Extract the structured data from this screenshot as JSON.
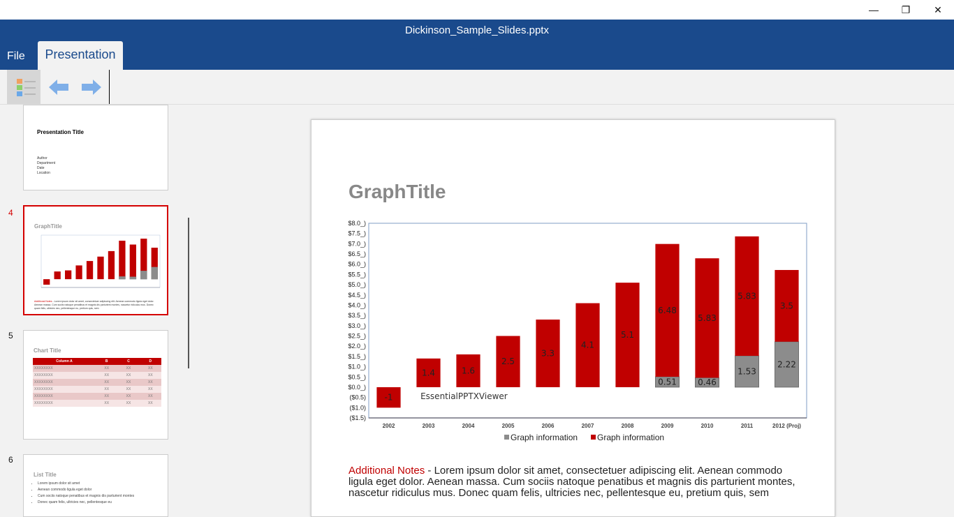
{
  "window": {
    "title": "Dickinson_Sample_Slides.pptx",
    "minimize": "—",
    "restore": "❐",
    "close": "✕"
  },
  "menu": {
    "file": "File",
    "presentation": "Presentation"
  },
  "toolbar": {
    "icons": [
      "slide-list-icon",
      "arrow-left-icon",
      "arrow-right-icon"
    ]
  },
  "thumbnails": [
    {
      "number": "",
      "title": "Presentation Title",
      "lines": [
        "Author",
        "Department",
        "Date",
        "Location"
      ]
    },
    {
      "number": "4",
      "title": "GraphTitle",
      "selected": true
    },
    {
      "number": "5",
      "title": "Chart Title",
      "headers": [
        "Column A",
        "B",
        "C",
        "D"
      ],
      "rows": [
        [
          "XXXXXXXX",
          "XX",
          "XX",
          "XX"
        ],
        [
          "XXXXXXXX",
          "XX",
          "XX",
          "XX"
        ],
        [
          "XXXXXXXX",
          "XX",
          "XX",
          "XX"
        ],
        [
          "XXXXXXXX",
          "XX",
          "XX",
          "XX"
        ],
        [
          "XXXXXXXX",
          "XX",
          "XX",
          "XX"
        ],
        [
          "XXXXXXXX",
          "XX",
          "XX",
          "XX"
        ]
      ]
    },
    {
      "number": "6",
      "title": "List Title",
      "bullets": [
        "Lorem ipsum dolor sit amet",
        "Aenean commodo ligula eget dolor",
        "Cum sociis natoque penatibus et magnis dis parturient montes",
        "Donec quam felis, ultricies nec, pellentesque eu"
      ]
    }
  ],
  "slide": {
    "title": "GraphTitle",
    "notes_label": "Additional Notes",
    "notes_text": " - Lorem ipsum dolor sit amet, consectetuer adipiscing elit. Aenean commodo ligula eget dolor. Aenean massa. Cum sociis natoque penatibus et magnis dis parturient montes, nascetur ridiculus mus. Donec quam felis, ultricies nec, pellentesque eu, pretium quis, sem",
    "watermark": "EssentialPPTXViewer"
  },
  "chart_data": {
    "type": "bar",
    "stacked": true,
    "categories": [
      "2002",
      "2003",
      "2004",
      "2005",
      "2006",
      "2007",
      "2008",
      "2009",
      "2010",
      "2011",
      "2012 (Proj)"
    ],
    "series": [
      {
        "name": "Graph information",
        "color": "#8c8c8c",
        "values": [
          null,
          null,
          null,
          null,
          null,
          null,
          null,
          0.51,
          0.46,
          1.53,
          2.22
        ]
      },
      {
        "name": "Graph information",
        "color": "#c00000",
        "values": [
          -1,
          1.4,
          1.6,
          2.5,
          3.3,
          4.1,
          5.1,
          6.48,
          5.83,
          5.83,
          3.5
        ]
      }
    ],
    "ylim": [
      -1.5,
      8.0
    ],
    "yticks": [
      "$8.0_)",
      "$7.5_)",
      "$7.0_)",
      "$6.5_)",
      "$6.0_)",
      "$5.5_)",
      "$5.0_)",
      "$4.5_)",
      "$4.0_)",
      "$3.5_)",
      "$3.0_)",
      "$2.5_)",
      "$2.0_)",
      "$1.5_)",
      "$1.0_)",
      "$0.5_)",
      "$0.0_)",
      "($0.5)",
      "($1.0)",
      "($1.5)"
    ],
    "legend_position": "bottom",
    "grid": false
  }
}
